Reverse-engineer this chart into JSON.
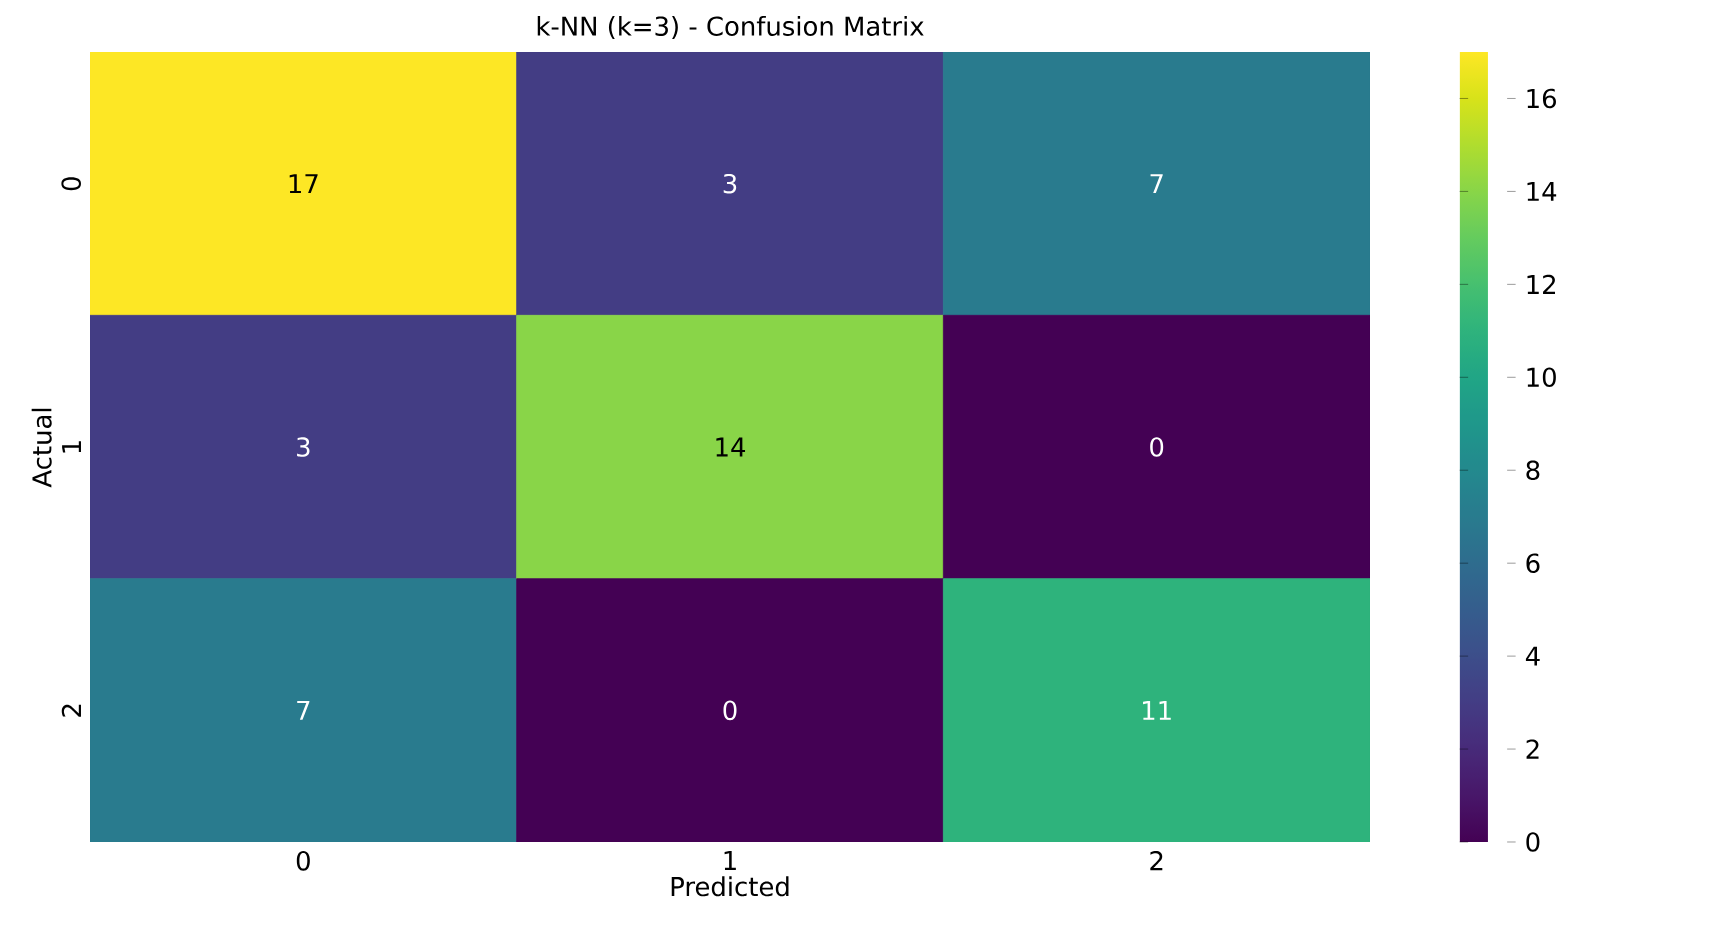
{
  "chart_data": {
    "type": "heatmap",
    "title": "k-NN (k=3) - Confusion Matrix",
    "xlabel": "Predicted",
    "ylabel": "Actual",
    "categories": [
      "0",
      "1",
      "2"
    ],
    "y_categories": [
      "0",
      "1",
      "2"
    ],
    "cells": [
      [
        17,
        3,
        7
      ],
      [
        3,
        14,
        0
      ],
      [
        7,
        0,
        11
      ]
    ],
    "cell_labels": [
      [
        "17",
        "3",
        "7"
      ],
      [
        "3",
        "14",
        "0"
      ],
      [
        "7",
        "0",
        "11"
      ]
    ],
    "clim": [
      0,
      17
    ],
    "cticks": [
      0,
      2,
      4,
      6,
      8,
      10,
      12,
      14,
      16
    ]
  }
}
